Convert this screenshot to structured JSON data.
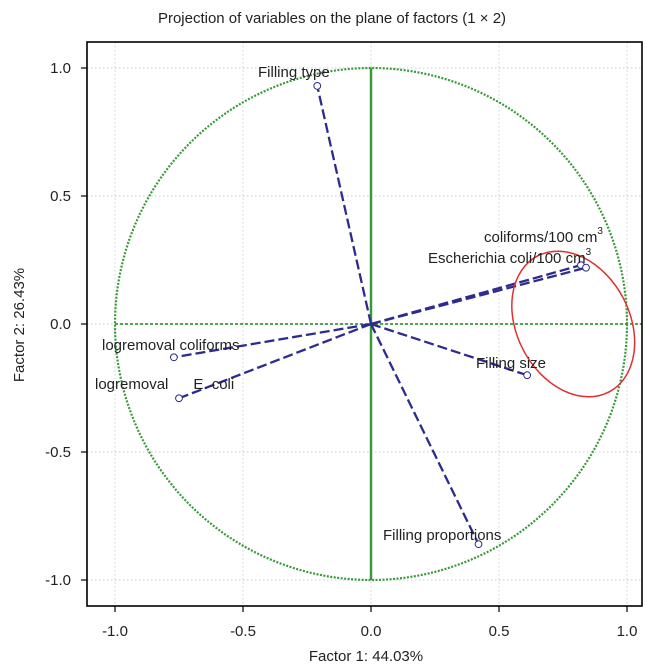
{
  "chart_data": {
    "type": "scatter",
    "title": "Projection of variables on the plane of factors (1 × 2)",
    "xlabel": "Factor 1: 44.03%",
    "ylabel": "Factor 2: 26.43%",
    "xlim": [
      -1.1,
      1.1
    ],
    "ylim": [
      -1.1,
      1.1
    ],
    "x_ticks": [
      -1.0,
      -0.5,
      0.0,
      0.5,
      1.0
    ],
    "y_ticks": [
      -1.0,
      -0.5,
      0.0,
      0.5,
      1.0
    ],
    "x_tick_labels": [
      "-1.0",
      "-0.5",
      "0.0",
      "0.5",
      "1.0"
    ],
    "y_tick_labels": [
      "-1.0",
      "-0.5",
      "0.0",
      "0.5",
      "1.0"
    ],
    "grid": true,
    "unit_circle": true,
    "variables": [
      {
        "name": "Filling type",
        "x": -0.21,
        "y": 0.93
      },
      {
        "name": "coliforms/100 cm",
        "superscript": "3",
        "x": 0.82,
        "y": 0.23
      },
      {
        "name": "Escherichia coli/100 cm",
        "superscript": "3",
        "x": 0.84,
        "y": 0.22
      },
      {
        "name": "Filling size",
        "x": 0.61,
        "y": -0.2
      },
      {
        "name": "Filling proportions",
        "x": 0.42,
        "y": -0.86
      },
      {
        "name": "logremoval coliforms",
        "x": -0.77,
        "y": -0.13
      },
      {
        "name": "logremoval      E. coli",
        "x": -0.75,
        "y": -0.29
      }
    ],
    "highlight_ellipse": {
      "center_x": 0.79,
      "center_y": 0.0,
      "radius_x": 0.22,
      "radius_y": 0.3,
      "color": "#e03030"
    },
    "colors": {
      "vector": "#2e2b8f",
      "circle": "#3a9a3a",
      "axis": "#3a9a3a",
      "grid": "#bbbbbb",
      "frame": "#000000"
    }
  }
}
